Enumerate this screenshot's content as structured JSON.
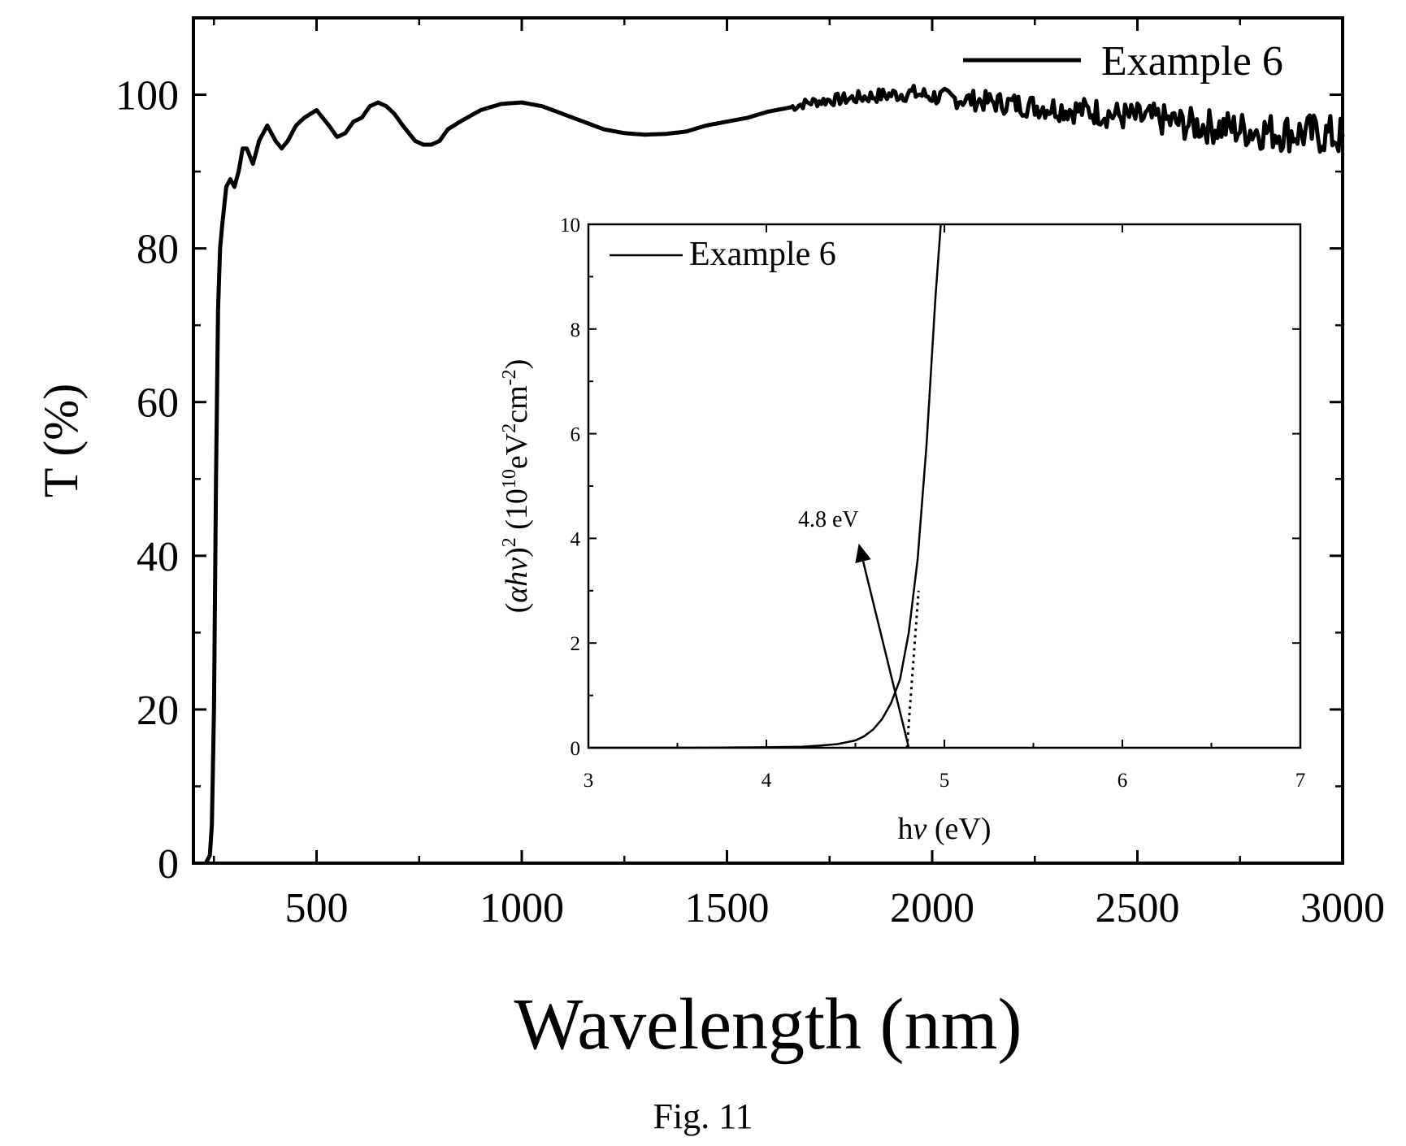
{
  "caption": "Fig. 11",
  "chart_data": [
    {
      "type": "line",
      "xlabel": "Wavelength (nm)",
      "ylabel": "T (%)",
      "xlim": [
        200,
        3000
      ],
      "ylim": [
        0,
        110
      ],
      "xticks": [
        "500",
        "1000",
        "1500",
        "2000",
        "2500",
        "3000"
      ],
      "yticks": [
        "0",
        "20",
        "40",
        "60",
        "80",
        "100"
      ],
      "legend": {
        "position": "top-right",
        "entries": [
          "Example 6"
        ]
      },
      "series": [
        {
          "name": "Example 6",
          "x": [
            230,
            240,
            245,
            250,
            255,
            260,
            265,
            270,
            280,
            290,
            300,
            310,
            320,
            330,
            345,
            360,
            380,
            400,
            415,
            430,
            450,
            470,
            500,
            515,
            530,
            550,
            570,
            590,
            610,
            630,
            650,
            670,
            690,
            710,
            725,
            740,
            760,
            780,
            800,
            820,
            850,
            900,
            950,
            1000,
            1050,
            1100,
            1150,
            1200,
            1250,
            1300,
            1350,
            1400,
            1450,
            1500,
            1550,
            1600,
            1650,
            1700,
            1750,
            1800,
            1850,
            1900,
            1950,
            2000,
            2050,
            2100,
            2150,
            2200,
            2250,
            2300,
            2350,
            2400,
            2450,
            2500,
            2550,
            2600,
            2650,
            2700,
            2750,
            2800,
            2850,
            2900,
            2950,
            3000
          ],
          "y": [
            0,
            1,
            5,
            20,
            50,
            72,
            80,
            83,
            88,
            89,
            88,
            90,
            93,
            93,
            91,
            94,
            96,
            94,
            93,
            94,
            96,
            97,
            98,
            97,
            96,
            94.5,
            95,
            96.5,
            97,
            98.5,
            99,
            98.5,
            97.5,
            96,
            95,
            94,
            93.5,
            93.5,
            94,
            95.5,
            96.5,
            98,
            98.8,
            99,
            98.5,
            97.5,
            96.5,
            95.5,
            95,
            94.8,
            94.9,
            95.2,
            96,
            96.5,
            97,
            97.8,
            98.3,
            99,
            99.3,
            99.5,
            99.8,
            100,
            100.2,
            99.8,
            99.5,
            99.3,
            99,
            98.8,
            98.5,
            98.3,
            98,
            97.8,
            97.3,
            97,
            96.8,
            96.3,
            96,
            95.8,
            95.5,
            95.3,
            95.1,
            95,
            94.8,
            94.5
          ]
        }
      ]
    },
    {
      "type": "line",
      "xlabel": "hν (eV)",
      "ylabel": "(αhν)² (10¹⁰eV²cm⁻²)",
      "xlim": [
        3,
        7
      ],
      "ylim": [
        0,
        10
      ],
      "xticks": [
        "3",
        "4",
        "5",
        "6",
        "7"
      ],
      "yticks": [
        "0",
        "2",
        "4",
        "6",
        "8",
        "10"
      ],
      "legend": {
        "position": "top-left",
        "entries": [
          "Example 6"
        ]
      },
      "annotation": {
        "text": "4.8 eV",
        "arrow_from": [
          4.8,
          0
        ],
        "arrow_to": [
          4.53,
          3.75
        ]
      },
      "series": [
        {
          "name": "Example 6",
          "x": [
            3.0,
            3.5,
            4.0,
            4.2,
            4.3,
            4.4,
            4.5,
            4.55,
            4.6,
            4.65,
            4.7,
            4.75,
            4.8,
            4.85,
            4.9,
            4.95,
            4.98
          ],
          "y": [
            0.0,
            0.0,
            0.01,
            0.02,
            0.04,
            0.07,
            0.14,
            0.22,
            0.35,
            0.55,
            0.85,
            1.3,
            2.2,
            3.6,
            5.8,
            8.6,
            10.0
          ]
        }
      ],
      "tangent": {
        "x": [
          4.79,
          4.855
        ],
        "y": [
          0,
          3.0
        ]
      }
    }
  ]
}
